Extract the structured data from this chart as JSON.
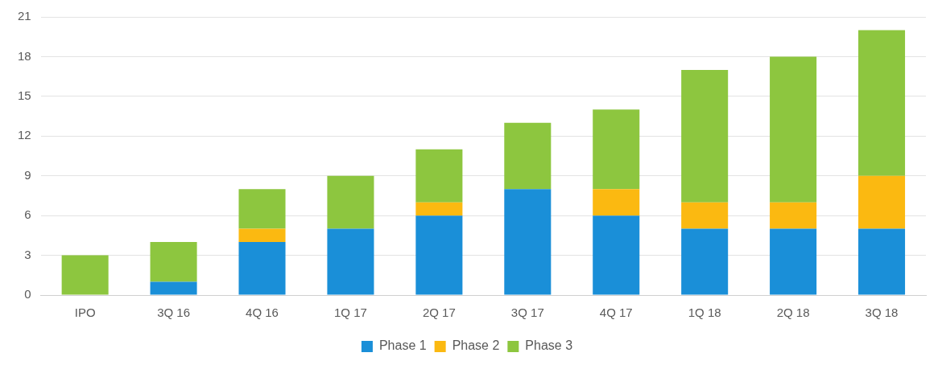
{
  "chart_data": {
    "type": "bar",
    "stacked": true,
    "categories": [
      "IPO",
      "3Q 16",
      "4Q 16",
      "1Q 17",
      "2Q 17",
      "3Q 17",
      "4Q 17",
      "1Q 18",
      "2Q 18",
      "3Q 18"
    ],
    "series": [
      {
        "name": "Phase 1",
        "color": "#1a8fd8",
        "values": [
          0,
          1,
          4,
          5,
          6,
          8,
          6,
          5,
          5,
          5
        ]
      },
      {
        "name": "Phase 2",
        "color": "#fbb911",
        "values": [
          0,
          0,
          1,
          0,
          1,
          0,
          2,
          2,
          2,
          4
        ]
      },
      {
        "name": "Phase 3",
        "color": "#8dc63f",
        "values": [
          3,
          3,
          3,
          4,
          4,
          5,
          6,
          10,
          11,
          11
        ]
      }
    ],
    "ylim": [
      0,
      21
    ],
    "yticks": [
      0,
      3,
      6,
      9,
      12,
      15,
      18,
      21
    ],
    "grid": "y",
    "legend": "bottom"
  }
}
